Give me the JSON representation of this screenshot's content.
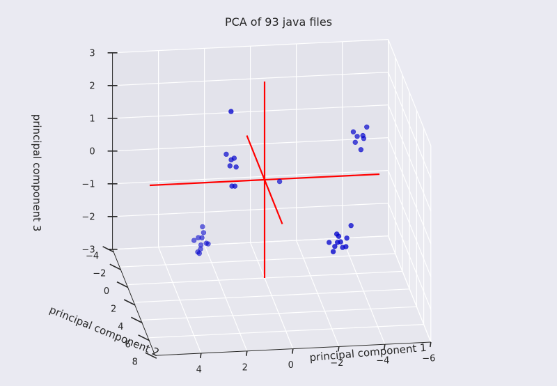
{
  "chart_data": {
    "type": "scatter",
    "projection": "3d",
    "title": "PCA of 93 java files",
    "xlabel": "principal component 1",
    "ylabel": "principal component 2",
    "zlabel": "principal component 3",
    "xlim": [
      -6,
      6
    ],
    "ylim": [
      -4,
      8
    ],
    "zlim": [
      -3,
      3
    ],
    "x_ticks": [
      "4",
      "2",
      "0",
      "−2",
      "−4",
      "−6"
    ],
    "y_ticks": [
      "−4",
      "−2",
      "0",
      "2",
      "4",
      "6",
      "8"
    ],
    "z_ticks": [
      "3",
      "2",
      "1",
      "0",
      "−1",
      "−2",
      "−3"
    ],
    "grid": true,
    "colors": {
      "background": "#eaeaf2",
      "pane": "#e4e4ec",
      "point": "#0000cc",
      "axis_lines": "#ff0000",
      "grid": "#ffffff",
      "text": "#262626"
    },
    "point_clusters": [
      {
        "cluster": "upper-left",
        "points": [
          [
            -4.2,
            1.6,
            1.9
          ],
          [
            -4.0,
            1.8,
            1.7
          ],
          [
            -3.8,
            1.5,
            1.6
          ],
          [
            -3.6,
            1.7,
            1.8
          ],
          [
            -3.9,
            1.9,
            1.3
          ],
          [
            -4.1,
            1.4,
            1.5
          ],
          [
            -3.7,
            1.6,
            1.45
          ]
        ]
      },
      {
        "cluster": "lower-left",
        "points": [
          [
            -3.0,
            3.5,
            -1.2
          ],
          [
            -2.8,
            3.3,
            -1.1
          ],
          [
            -2.6,
            3.7,
            -1.0
          ],
          [
            -2.9,
            3.2,
            -1.3
          ],
          [
            -2.5,
            3.6,
            -1.15
          ],
          [
            -2.7,
            3.4,
            -0.9
          ],
          [
            -3.1,
            3.1,
            -1.05
          ],
          [
            -2.4,
            3.8,
            -1.25
          ],
          [
            -2.6,
            3.5,
            -0.8
          ],
          [
            -2.3,
            3.3,
            -1.1
          ],
          [
            -3.3,
            3.0,
            -0.7
          ]
        ]
      },
      {
        "cluster": "middle",
        "points": [
          [
            -0.5,
            1.0,
            0.2
          ]
        ]
      },
      {
        "cluster": "upper-right",
        "points": [
          [
            2.0,
            3.5,
            3.1
          ]
        ]
      },
      {
        "cluster": "right",
        "points": [
          [
            1.6,
            1.8,
            1.2
          ],
          [
            1.7,
            1.6,
            1.1
          ],
          [
            1.8,
            1.9,
            1.0
          ],
          [
            1.5,
            1.7,
            0.9
          ],
          [
            1.9,
            1.5,
            1.25
          ],
          [
            1.6,
            2.0,
            0.4
          ],
          [
            1.7,
            1.8,
            0.35
          ]
        ]
      },
      {
        "cluster": "lower-right",
        "points": [
          [
            2.5,
            -1.0,
            -1.8
          ],
          [
            2.6,
            -0.8,
            -1.9
          ],
          [
            2.7,
            -1.2,
            -2.0
          ],
          [
            2.4,
            -0.9,
            -2.1
          ],
          [
            2.6,
            -1.1,
            -2.2
          ],
          [
            2.8,
            -0.7,
            -2.3
          ],
          [
            2.5,
            -1.3,
            -1.7
          ],
          [
            2.7,
            -0.9,
            -2.4
          ],
          [
            2.3,
            -1.0,
            -2.15
          ],
          [
            2.9,
            -1.1,
            -2.05
          ],
          [
            2.6,
            -1.2,
            -2.35
          ]
        ]
      }
    ],
    "annotations": {
      "reference_axes": [
        {
          "name": "x-axis-line",
          "from": [
            -5,
            0,
            0
          ],
          "to": [
            5,
            0,
            0
          ]
        },
        {
          "name": "y-axis-line",
          "from": [
            0,
            -5,
            0
          ],
          "to": [
            0,
            5,
            0
          ]
        },
        {
          "name": "z-axis-line",
          "from": [
            0,
            0,
            -3
          ],
          "to": [
            0,
            0,
            3
          ]
        }
      ]
    }
  }
}
